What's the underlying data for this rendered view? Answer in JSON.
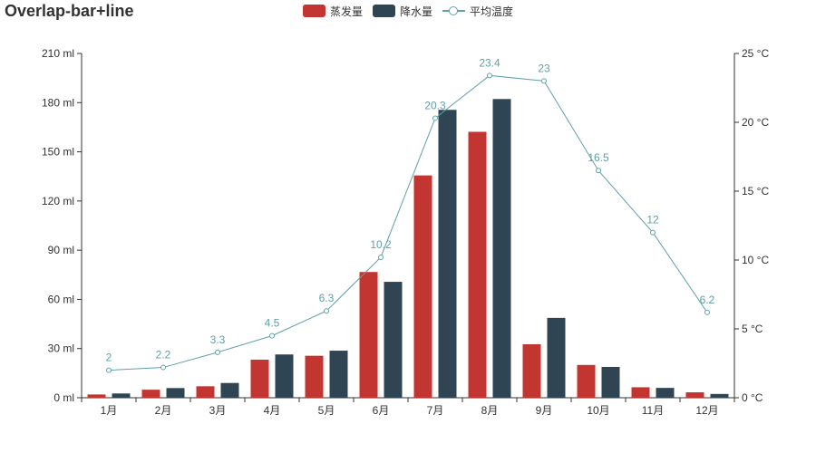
{
  "chart_data": {
    "type": "bar",
    "title": "Overlap-bar+line",
    "categories": [
      "1月",
      "2月",
      "3月",
      "4月",
      "5月",
      "6月",
      "7月",
      "8月",
      "9月",
      "10月",
      "11月",
      "12月"
    ],
    "series": [
      {
        "name": "蒸发量",
        "type": "bar",
        "axis": "left",
        "color": "#c23531",
        "values": [
          2.0,
          4.9,
          7.0,
          23.2,
          25.6,
          76.7,
          135.6,
          162.2,
          32.6,
          20.0,
          6.4,
          3.3
        ]
      },
      {
        "name": "降水量",
        "type": "bar",
        "axis": "left",
        "color": "#2f4554",
        "values": [
          2.6,
          5.9,
          9.0,
          26.4,
          28.7,
          70.7,
          175.6,
          182.2,
          48.7,
          18.8,
          6.0,
          2.3
        ]
      },
      {
        "name": "平均温度",
        "type": "line",
        "axis": "right",
        "color": "#61a0a8",
        "values": [
          2,
          2.2,
          3.3,
          4.5,
          6.3,
          10.2,
          20.3,
          23.4,
          23,
          16.5,
          12,
          6.2
        ]
      }
    ],
    "left_axis": {
      "min": 0,
      "max": 210,
      "ticks": [
        0,
        30,
        60,
        90,
        120,
        150,
        180,
        210
      ],
      "unit": " ml"
    },
    "right_axis": {
      "min": 0,
      "max": 25,
      "ticks": [
        0,
        5,
        10,
        15,
        20,
        25
      ],
      "unit": " °C"
    },
    "legend_position": "top-center"
  }
}
